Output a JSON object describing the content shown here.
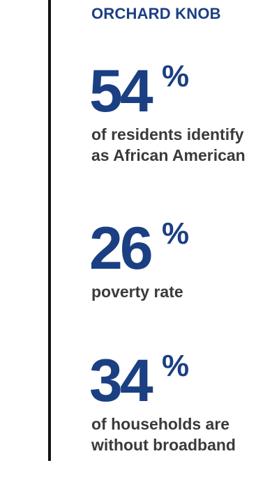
{
  "header": {
    "title": "ORCHARD KNOB"
  },
  "stats": [
    {
      "value": "54",
      "unit": "%",
      "line1": "of residents identify",
      "line2": "as African American"
    },
    {
      "value": "26",
      "unit": "%",
      "line1": "poverty rate",
      "line2": ""
    },
    {
      "value": "34",
      "unit": "%",
      "line1": "of households are",
      "line2": "without broadband"
    }
  ],
  "colors": {
    "accent": "#1b3f83",
    "text": "#3a3a3a",
    "rule": "#111111"
  }
}
